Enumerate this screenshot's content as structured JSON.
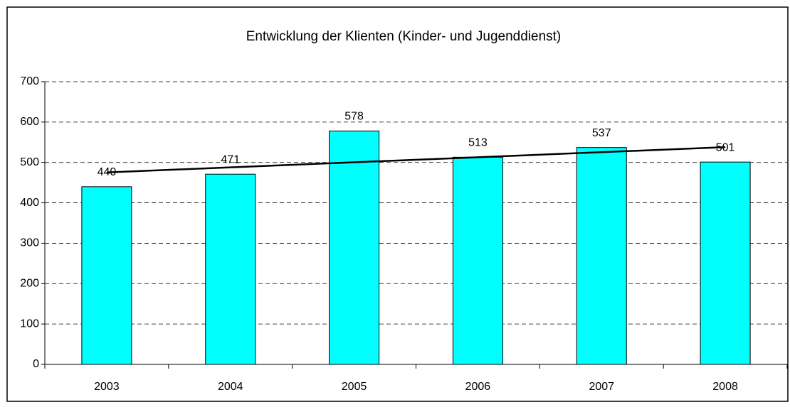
{
  "chart_data": {
    "type": "bar",
    "title": "Entwicklung der Klienten (Kinder- und Jugenddienst)",
    "categories": [
      "2003",
      "2004",
      "2005",
      "2006",
      "2007",
      "2008"
    ],
    "values": [
      440,
      471,
      578,
      513,
      537,
      501
    ],
    "color": "#00ffff",
    "ylim": [
      0,
      700
    ],
    "yticks": [
      0,
      100,
      200,
      300,
      400,
      500,
      600,
      700
    ],
    "grid": true,
    "trendline": "linear",
    "data_labels": true
  }
}
